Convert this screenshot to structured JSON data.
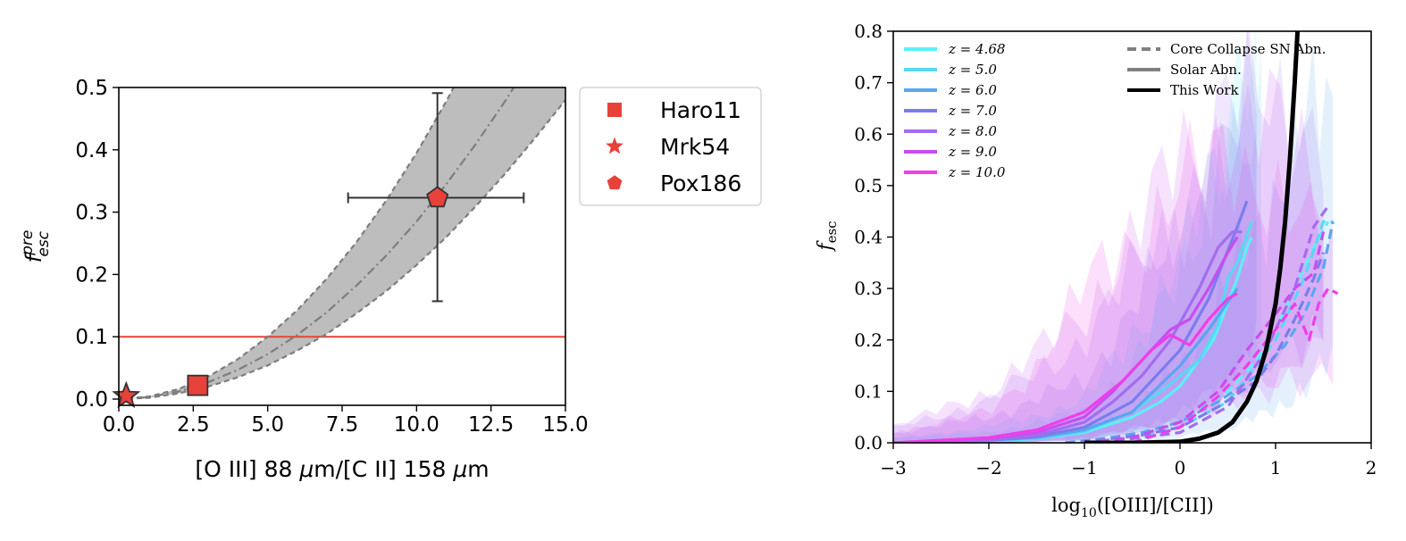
{
  "chart_data": [
    {
      "type": "scatter",
      "panel": "left",
      "title": "",
      "xlabel_parts": [
        "[O III] 88 ",
        "μ",
        "m/[C II] 158 ",
        "μ",
        "m"
      ],
      "ylabel_main": "f",
      "ylabel_sup": "pre",
      "ylabel_sub": "esc",
      "xlim": [
        0,
        15
      ],
      "ylim": [
        -0.01,
        0.5
      ],
      "xticks": [
        0,
        2.5,
        5,
        7.5,
        10,
        12.5,
        15
      ],
      "xtick_labels": [
        "0.0",
        "2.5",
        "5.0",
        "7.5",
        "10.0",
        "12.5",
        "15.0"
      ],
      "yticks": [
        0,
        0.1,
        0.2,
        0.3,
        0.4,
        0.5
      ],
      "ytick_labels": [
        "0.0",
        "0.1",
        "0.2",
        "0.3",
        "0.4",
        "0.5"
      ],
      "grid": false,
      "legend_position": "outside-right",
      "marker_color": "#e8413a",
      "points": [
        {
          "name": "Haro11",
          "marker": "square",
          "x": 2.65,
          "y": 0.022
        },
        {
          "name": "Mrk54",
          "marker": "star",
          "x": 0.25,
          "y": 0.005
        },
        {
          "name": "Pox186",
          "marker": "pentagon",
          "x": 10.7,
          "y": 0.323,
          "xerr": [
            3.0,
            2.9
          ],
          "yerr": [
            0.166,
            0.168
          ]
        }
      ],
      "reference_line": {
        "y": 0.1,
        "color": "#e8413a"
      },
      "relation": {
        "x": [
          0,
          1,
          2,
          3,
          4,
          5,
          6,
          7,
          8,
          9,
          10,
          11,
          12,
          13,
          14,
          15
        ],
        "central": [
          0.0,
          0.003,
          0.012,
          0.027,
          0.047,
          0.072,
          0.103,
          0.14,
          0.183,
          0.231,
          0.285,
          0.345,
          0.41,
          0.48,
          0.556,
          0.637
        ],
        "lower": [
          0.0,
          0.002,
          0.009,
          0.02,
          0.035,
          0.054,
          0.078,
          0.105,
          0.138,
          0.174,
          0.215,
          0.26,
          0.31,
          0.363,
          0.42,
          0.48
        ],
        "upper": [
          0.0,
          0.004,
          0.016,
          0.036,
          0.064,
          0.1,
          0.143,
          0.194,
          0.253,
          0.32,
          0.395,
          0.478,
          0.568,
          0.667,
          0.773,
          0.887
        ],
        "band_color": "#bdbdbd",
        "line_color": "#7d7d7d"
      }
    },
    {
      "type": "line",
      "panel": "right",
      "title": "",
      "xlabel_main": "log",
      "xlabel_sub": "10",
      "xlabel_rest": "([OIII]/[CII])",
      "ylabel_main": "f",
      "ylabel_sub": "esc",
      "xlim": [
        -3,
        2
      ],
      "ylim": [
        0,
        0.8
      ],
      "xticks": [
        -3,
        -2,
        -1,
        0,
        1,
        2
      ],
      "xtick_labels": [
        "−3",
        "−2",
        "−1",
        "0",
        "1",
        "2"
      ],
      "yticks": [
        0,
        0.1,
        0.2,
        0.3,
        0.4,
        0.5,
        0.6,
        0.7,
        0.8
      ],
      "ytick_labels": [
        "0.0",
        "0.1",
        "0.2",
        "0.3",
        "0.4",
        "0.5",
        "0.6",
        "0.7",
        "0.8"
      ],
      "grid": false,
      "legend_position": "top-left and top-right",
      "series": [
        {
          "name": "z = 4.68",
          "color": "#5cf0f5",
          "solid_x": [
            -3,
            -2.5,
            -2,
            -1.5,
            -1,
            -0.5,
            -0.2,
            0,
            0.2,
            0.35,
            0.5,
            0.6,
            0.7,
            0.75
          ],
          "solid_y": [
            0,
            0.002,
            0.004,
            0.008,
            0.02,
            0.05,
            0.08,
            0.11,
            0.16,
            0.2,
            0.27,
            0.32,
            0.38,
            0.4
          ],
          "dashed_x": [
            -1,
            -0.5,
            0,
            0.5,
            0.8,
            1.0,
            1.2,
            1.4,
            1.55
          ],
          "dashed_y": [
            0,
            0.01,
            0.04,
            0.1,
            0.16,
            0.22,
            0.3,
            0.38,
            0.43
          ],
          "band_x": [
            -3,
            -2,
            -1,
            -0.5,
            0,
            0.3,
            0.6,
            0.8
          ],
          "band_lo": [
            0,
            0,
            0.005,
            0.02,
            0.04,
            0.08,
            0.15,
            0.2
          ],
          "band_hi": [
            0.01,
            0.02,
            0.06,
            0.15,
            0.32,
            0.5,
            0.68,
            0.7
          ]
        },
        {
          "name": "z = 5.0",
          "color": "#58d8f2",
          "solid_x": [
            -3,
            -2,
            -1.5,
            -1,
            -0.5,
            -0.2,
            0,
            0.2,
            0.4,
            0.5,
            0.6,
            0.75
          ],
          "solid_y": [
            0,
            0.004,
            0.008,
            0.022,
            0.06,
            0.1,
            0.13,
            0.16,
            0.23,
            0.32,
            0.35,
            0.43
          ],
          "dashed_x": [
            -1,
            -0.5,
            0,
            0.5,
            1.0,
            1.3,
            1.5,
            1.6
          ],
          "dashed_y": [
            0,
            0.01,
            0.03,
            0.08,
            0.2,
            0.32,
            0.43,
            0.43
          ],
          "band_x": [
            -3,
            -2,
            -1,
            0,
            0.5,
            0.85
          ],
          "band_lo": [
            0,
            0,
            0.005,
            0.04,
            0.1,
            0.2
          ],
          "band_hi": [
            0.01,
            0.03,
            0.08,
            0.35,
            0.6,
            0.67
          ]
        },
        {
          "name": "z = 6.0",
          "color": "#5aa6f0",
          "solid_x": [
            -3,
            -2,
            -1.5,
            -1,
            -0.5,
            0,
            0.3,
            0.6
          ],
          "solid_y": [
            0,
            0.005,
            0.01,
            0.025,
            0.06,
            0.15,
            0.22,
            0.3
          ],
          "dashed_x": [
            -1.2,
            -0.8,
            -0.4,
            0,
            0.4,
            0.8,
            1.1,
            1.3,
            1.5,
            1.6
          ],
          "dashed_y": [
            0,
            0.008,
            0.02,
            0.04,
            0.08,
            0.13,
            0.19,
            0.25,
            0.34,
            0.43
          ],
          "band_x": [
            -1.2,
            -0.5,
            0,
            0.5,
            1.0,
            1.5,
            1.6
          ],
          "band_lo": [
            0,
            0.002,
            0.01,
            0.03,
            0.06,
            0.15,
            0.15
          ],
          "band_hi": [
            0.02,
            0.06,
            0.15,
            0.3,
            0.5,
            0.67,
            0.67
          ]
        },
        {
          "name": "z = 7.0",
          "color": "#7a7cec",
          "solid_x": [
            -3,
            -2,
            -1.5,
            -1,
            -0.5,
            0,
            0.3,
            0.6,
            0.7
          ],
          "solid_y": [
            0,
            0.005,
            0.012,
            0.03,
            0.08,
            0.18,
            0.28,
            0.42,
            0.47
          ],
          "dashed_x": [
            -1.2,
            -0.8,
            -0.4,
            0,
            0.4,
            0.8,
            1.0,
            1.2,
            1.4,
            1.5
          ],
          "dashed_y": [
            0,
            0.006,
            0.015,
            0.03,
            0.07,
            0.12,
            0.17,
            0.24,
            0.32,
            0.37
          ],
          "band_x": [
            -3,
            -2,
            -1,
            0,
            0.5,
            0.8
          ],
          "band_lo": [
            0,
            0,
            0.005,
            0.05,
            0.12,
            0.2
          ],
          "band_hi": [
            0.02,
            0.05,
            0.12,
            0.4,
            0.6,
            0.65
          ]
        },
        {
          "name": "z = 8.0",
          "color": "#a36cf0",
          "solid_x": [
            -3,
            -2,
            -1.5,
            -1,
            -0.7,
            -0.4,
            -0.1,
            0.2,
            0.4,
            0.55,
            0.65
          ],
          "solid_y": [
            0,
            0.006,
            0.015,
            0.04,
            0.08,
            0.13,
            0.2,
            0.3,
            0.38,
            0.41,
            0.41
          ],
          "dashed_x": [
            -1,
            -0.5,
            0,
            0.5,
            0.9,
            1.2,
            1.4,
            1.55
          ],
          "dashed_y": [
            0,
            0.008,
            0.02,
            0.07,
            0.18,
            0.3,
            0.42,
            0.46
          ],
          "band_x": [
            -3,
            -2,
            -1,
            0,
            0.5,
            1.0,
            1.5
          ],
          "band_lo": [
            0,
            0,
            0.005,
            0.04,
            0.1,
            0.15,
            0.2
          ],
          "band_hi": [
            0.03,
            0.08,
            0.2,
            0.45,
            0.65,
            0.68,
            0.6
          ]
        },
        {
          "name": "z = 9.0",
          "color": "#c84df0",
          "solid_x": [
            -3,
            -2,
            -1.5,
            -1,
            -0.7,
            -0.4,
            -0.1,
            0.1,
            0.3,
            0.5,
            0.6
          ],
          "solid_y": [
            0,
            0.008,
            0.02,
            0.05,
            0.1,
            0.16,
            0.22,
            0.24,
            0.3,
            0.37,
            0.4
          ],
          "dashed_x": [
            -1,
            -0.5,
            0,
            0.4,
            0.7,
            1.0,
            1.2,
            1.4,
            1.5
          ],
          "dashed_y": [
            0,
            0.01,
            0.04,
            0.1,
            0.18,
            0.25,
            0.3,
            0.33,
            0.41
          ],
          "band_x": [
            -3,
            -2,
            -1,
            0,
            0.5,
            1.0,
            1.5
          ],
          "band_lo": [
            0,
            0,
            0.005,
            0.03,
            0.08,
            0.12,
            0.2
          ],
          "band_hi": [
            0.03,
            0.1,
            0.25,
            0.55,
            0.6,
            0.62,
            0.5
          ]
        },
        {
          "name": "z = 10.0",
          "color": "#ee3ee8",
          "solid_x": [
            -3,
            -2,
            -1.5,
            -1,
            -0.6,
            -0.3,
            -0.1,
            0.1,
            0.3,
            0.5,
            0.6
          ],
          "solid_y": [
            0,
            0.01,
            0.025,
            0.06,
            0.12,
            0.18,
            0.21,
            0.19,
            0.24,
            0.28,
            0.29
          ],
          "dashed_x": [
            -0.5,
            0,
            0.4,
            0.7,
            1.0,
            1.2,
            1.35,
            1.45,
            1.55,
            1.65
          ],
          "dashed_y": [
            0,
            0.03,
            0.09,
            0.15,
            0.22,
            0.27,
            0.2,
            0.27,
            0.3,
            0.29
          ],
          "band_x": [
            -3,
            -2,
            -1.5,
            -1,
            0,
            0.5,
            1.0,
            1.6
          ],
          "band_lo": [
            0,
            0,
            0.002,
            0.01,
            0.04,
            0.08,
            0.12,
            0.15
          ],
          "band_hi": [
            0.02,
            0.06,
            0.15,
            0.3,
            0.5,
            0.55,
            0.5,
            0.36
          ]
        }
      ],
      "this_work": {
        "name": "This Work",
        "color": "#000000",
        "x": [
          -1.0,
          -0.5,
          0,
          0.2,
          0.4,
          0.55,
          0.7,
          0.8,
          0.9,
          1.0,
          1.05,
          1.1,
          1.15,
          1.2,
          1.23
        ],
        "y": [
          0,
          0,
          0.002,
          0.008,
          0.02,
          0.04,
          0.08,
          0.12,
          0.18,
          0.27,
          0.34,
          0.43,
          0.55,
          0.7,
          0.8
        ]
      },
      "style_legend": [
        {
          "name": "Core Collapse SN Abn.",
          "style": "dashed",
          "color": "#808080"
        },
        {
          "name": "Solar Abn.",
          "style": "solid",
          "color": "#808080"
        },
        {
          "name": "This Work",
          "style": "solid",
          "color": "#000000"
        }
      ]
    }
  ]
}
